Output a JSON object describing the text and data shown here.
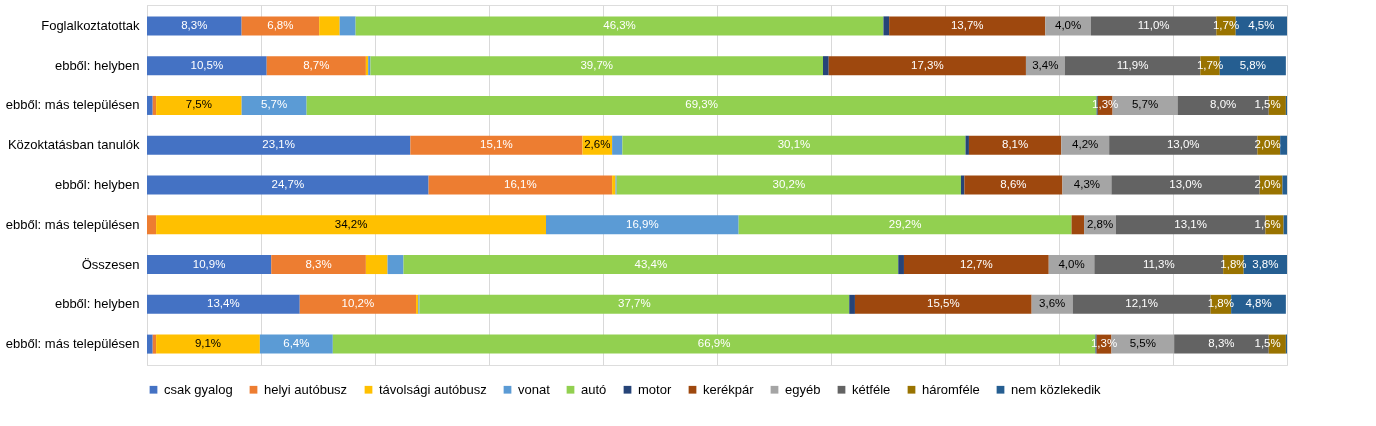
{
  "chart_data": {
    "type": "bar",
    "orientation": "horizontal",
    "stacked": true,
    "categories": [
      "Foglalkoztatottak",
      "ebből: helyben",
      "ebből: más településen",
      "Közoktatásban tanulók",
      "ebből: helyben",
      "ebből: más településen",
      "Összesen",
      "ebből: helyben",
      "ebből: más településen"
    ],
    "series": [
      {
        "name": "csak gyalog",
        "color": "#4472c4",
        "values": [
          8.3,
          10.5,
          0.5,
          23.1,
          24.7,
          0,
          10.9,
          13.4,
          0.5
        ],
        "value_labels": [
          "8,3%",
          "10,5%",
          null,
          "23,1%",
          "24,7%",
          null,
          "10,9%",
          "13,4%",
          null
        ]
      },
      {
        "name": "helyi autóbusz",
        "color": "#ed7d31",
        "values": [
          6.8,
          8.7,
          0.3,
          15.1,
          16.1,
          0.8,
          8.3,
          10.2,
          0.3
        ],
        "value_labels": [
          "6,8%",
          "8,7%",
          null,
          "15,1%",
          "16,1%",
          null,
          "8,3%",
          "10,2%",
          null
        ]
      },
      {
        "name": "távolsági autóbusz",
        "color": "#ffc000",
        "values": [
          1.8,
          0.2,
          7.5,
          2.6,
          0.3,
          34.2,
          1.9,
          0.2,
          9.1
        ],
        "value_labels": [
          null,
          null,
          "7,5%",
          "2,6%",
          null,
          "34,2%",
          null,
          null,
          "9,1%"
        ]
      },
      {
        "name": "vonat",
        "color": "#5b9bd5",
        "values": [
          1.4,
          0.2,
          5.7,
          0.9,
          0.1,
          16.9,
          1.4,
          0.1,
          6.4
        ],
        "value_labels": [
          null,
          null,
          "5,7%",
          null,
          null,
          "16,9%",
          null,
          null,
          "6,4%"
        ]
      },
      {
        "name": "autó",
        "color": "#92d050",
        "values": [
          46.3,
          39.7,
          69.3,
          30.1,
          30.2,
          29.2,
          43.4,
          37.7,
          66.9
        ],
        "value_labels": [
          "46,3%",
          "39,7%",
          "69,3%",
          "30,1%",
          "30,2%",
          "29,2%",
          "43,4%",
          "37,7%",
          "66,9%"
        ]
      },
      {
        "name": "motor",
        "color": "#264478",
        "values": [
          0.5,
          0.5,
          0.1,
          0.3,
          0.3,
          0,
          0.5,
          0.5,
          0.1
        ],
        "value_labels": [
          null,
          null,
          null,
          null,
          null,
          null,
          null,
          null,
          null
        ]
      },
      {
        "name": "kerékpár",
        "color": "#9e480e",
        "values": [
          13.7,
          17.3,
          1.3,
          8.1,
          8.6,
          1.1,
          12.7,
          15.5,
          1.3
        ],
        "value_labels": [
          "13,7%",
          "17,3%",
          "1,3%",
          "8,1%",
          "8,6%",
          null,
          "12,7%",
          "15,5%",
          "1,3%"
        ]
      },
      {
        "name": "egyéb",
        "color": "#a5a5a5",
        "values": [
          4.0,
          3.4,
          5.7,
          4.2,
          4.3,
          2.8,
          4.0,
          3.6,
          5.5
        ],
        "value_labels": [
          "4,0%",
          "3,4%",
          "5,7%",
          "4,2%",
          "4,3%",
          "2,8%",
          "4,0%",
          "3,6%",
          "5,5%"
        ]
      },
      {
        "name": "kétféle",
        "color": "#636363",
        "values": [
          11.0,
          11.9,
          8.0,
          13.0,
          13.0,
          13.1,
          11.3,
          12.1,
          8.3
        ],
        "value_labels": [
          "11,0%",
          "11,9%",
          "8,0%",
          "13,0%",
          "13,0%",
          "13,1%",
          "11,3%",
          "12,1%",
          "8,3%"
        ]
      },
      {
        "name": "háromféle",
        "color": "#997300",
        "values": [
          1.7,
          1.7,
          1.5,
          2.0,
          2.0,
          1.6,
          1.8,
          1.8,
          1.5
        ],
        "value_labels": [
          "1,7%",
          "1,7%",
          "1,5%",
          "2,0%",
          "2,0%",
          "1,6%",
          "1,8%",
          "1,8%",
          "1,5%"
        ]
      },
      {
        "name": "nem közlekedik",
        "color": "#255e91",
        "values": [
          4.5,
          5.8,
          0.1,
          0.6,
          0.4,
          0.3,
          3.8,
          4.8,
          0.1
        ],
        "value_labels": [
          "4,5%",
          "5,8%",
          null,
          null,
          null,
          null,
          "3,8%",
          "4,8%",
          null
        ]
      }
    ],
    "xlim": [
      0,
      100
    ],
    "xticks": [
      {
        "value": 0,
        "label": null
      },
      {
        "value": 10,
        "label": null
      },
      {
        "value": 20,
        "label": null
      },
      {
        "value": 30,
        "label": null
      },
      {
        "value": 40,
        "label": null
      },
      {
        "value": 50,
        "label": null
      },
      {
        "value": 60,
        "label": null
      },
      {
        "value": 70,
        "label": null
      },
      {
        "value": 80,
        "label": null
      },
      {
        "value": 90,
        "label": null
      },
      {
        "value": 100,
        "label": null
      }
    ],
    "grid": "x",
    "legend": "bottom",
    "tick_labels": "y"
  }
}
